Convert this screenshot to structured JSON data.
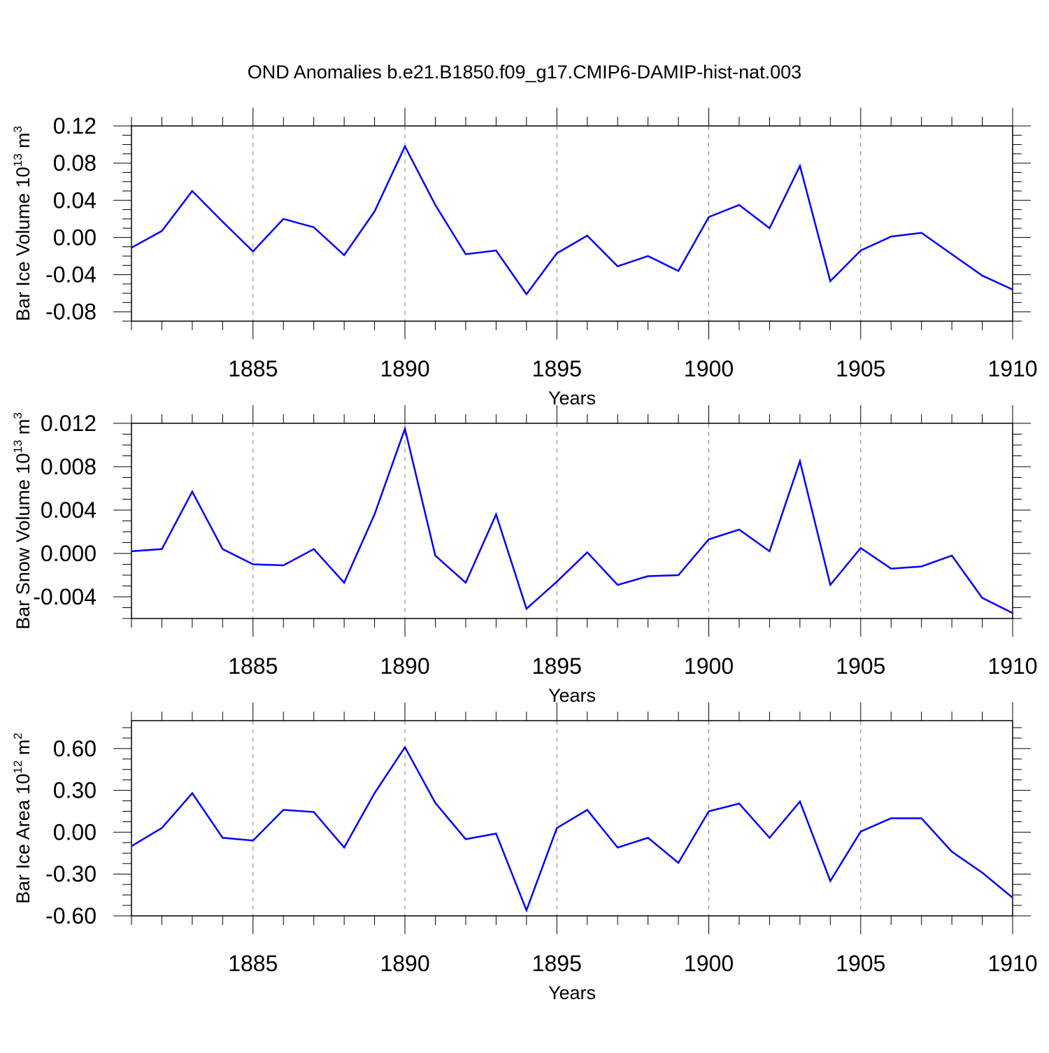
{
  "title": "OND Anomalies b.e21.B1850.f09_g17.CMIP6-DAMIP-hist-nat.003",
  "colors": {
    "line": "#0000ff",
    "axis": "#000000",
    "grid": "#808080"
  },
  "chart_data": [
    {
      "type": "line",
      "title": "",
      "xlabel": "Years",
      "ylabel": "Bar Ice Volume",
      "ylabel_unit_prefix": "10",
      "ylabel_unit_exp": "13",
      "ylabel_unit_suffix": "m",
      "ylabel_unit_suffix_exp": "3",
      "xlim": [
        1881,
        1910
      ],
      "ylim": [
        -0.09,
        0.12
      ],
      "xticks": [
        1885,
        1890,
        1895,
        1900,
        1905,
        1910
      ],
      "xtick_labels": [
        "1885",
        "1890",
        "1895",
        "1900",
        "1905",
        "1910"
      ],
      "yticks": [
        -0.08,
        -0.04,
        0.0,
        0.04,
        0.08,
        0.12
      ],
      "ytick_labels": [
        "-0.08",
        "-0.04",
        "0.00",
        "0.04",
        "0.08",
        "0.12"
      ],
      "grid": "vertical dashed at labeled years",
      "series": [
        {
          "x": [
            1881,
            1882,
            1883,
            1884,
            1885,
            1886,
            1887,
            1888,
            1889,
            1890,
            1891,
            1892,
            1893,
            1894,
            1895,
            1896,
            1897,
            1898,
            1899,
            1900,
            1901,
            1902,
            1903,
            1904,
            1905,
            1906,
            1907,
            1908,
            1909,
            1910
          ],
          "values": [
            -0.011,
            0.007,
            0.05,
            0.017,
            -0.015,
            0.02,
            0.011,
            -0.019,
            0.028,
            0.098,
            0.035,
            -0.018,
            -0.014,
            -0.061,
            -0.017,
            0.002,
            -0.031,
            -0.02,
            -0.036,
            0.022,
            0.035,
            0.01,
            0.077,
            -0.047,
            -0.014,
            0.001,
            0.005,
            -0.018,
            -0.041,
            -0.056
          ]
        }
      ]
    },
    {
      "type": "line",
      "title": "",
      "xlabel": "Years",
      "ylabel": "Bar Snow Volume",
      "ylabel_unit_prefix": "10",
      "ylabel_unit_exp": "13",
      "ylabel_unit_suffix": "m",
      "ylabel_unit_suffix_exp": "3",
      "xlim": [
        1881,
        1910
      ],
      "ylim": [
        -0.006,
        0.012
      ],
      "xticks": [
        1885,
        1890,
        1895,
        1900,
        1905,
        1910
      ],
      "xtick_labels": [
        "1885",
        "1890",
        "1895",
        "1900",
        "1905",
        "1910"
      ],
      "yticks": [
        -0.004,
        0.0,
        0.004,
        0.008,
        0.012
      ],
      "ytick_labels": [
        "-0.004",
        "0.000",
        "0.004",
        "0.008",
        "0.012"
      ],
      "grid": "vertical dashed at labeled years",
      "series": [
        {
          "x": [
            1881,
            1882,
            1883,
            1884,
            1885,
            1886,
            1887,
            1888,
            1889,
            1890,
            1891,
            1892,
            1893,
            1894,
            1895,
            1896,
            1897,
            1898,
            1899,
            1900,
            1901,
            1902,
            1903,
            1904,
            1905,
            1906,
            1907,
            1908,
            1909,
            1910
          ],
          "values": [
            0.0002,
            0.0004,
            0.0057,
            0.0004,
            -0.001,
            -0.0011,
            0.0004,
            -0.0027,
            0.0036,
            0.0115,
            -0.0002,
            -0.0027,
            0.0036,
            -0.0051,
            -0.0026,
            0.0001,
            -0.0029,
            -0.0021,
            -0.002,
            0.0013,
            0.0022,
            0.0002,
            0.0085,
            -0.0029,
            0.0005,
            -0.0014,
            -0.0012,
            -0.0002,
            -0.0041,
            -0.0055
          ]
        }
      ]
    },
    {
      "type": "line",
      "title": "",
      "xlabel": "Years",
      "ylabel": "Bar Ice Area",
      "ylabel_unit_prefix": "10",
      "ylabel_unit_exp": "12",
      "ylabel_unit_suffix": "m",
      "ylabel_unit_suffix_exp": "2",
      "xlim": [
        1881,
        1910
      ],
      "ylim": [
        -0.6,
        0.8
      ],
      "xticks": [
        1885,
        1890,
        1895,
        1900,
        1905,
        1910
      ],
      "xtick_labels": [
        "1885",
        "1890",
        "1895",
        "1900",
        "1905",
        "1910"
      ],
      "yticks": [
        -0.6,
        -0.3,
        0.0,
        0.3,
        0.6
      ],
      "ytick_labels": [
        "-0.60",
        "-0.30",
        "0.00",
        "0.30",
        "0.60"
      ],
      "grid": "vertical dashed at labeled years",
      "series": [
        {
          "x": [
            1881,
            1882,
            1883,
            1884,
            1885,
            1886,
            1887,
            1888,
            1889,
            1890,
            1891,
            1892,
            1893,
            1894,
            1895,
            1896,
            1897,
            1898,
            1899,
            1900,
            1901,
            1902,
            1903,
            1904,
            1905,
            1906,
            1907,
            1908,
            1909,
            1910
          ],
          "values": [
            -0.1,
            0.03,
            0.28,
            -0.04,
            -0.06,
            0.16,
            0.145,
            -0.11,
            0.28,
            0.61,
            0.21,
            -0.05,
            -0.01,
            -0.56,
            0.03,
            0.16,
            -0.11,
            -0.04,
            -0.22,
            0.15,
            0.205,
            -0.04,
            0.22,
            -0.35,
            0.005,
            0.1,
            0.1,
            -0.14,
            -0.29,
            -0.47
          ]
        }
      ]
    }
  ]
}
